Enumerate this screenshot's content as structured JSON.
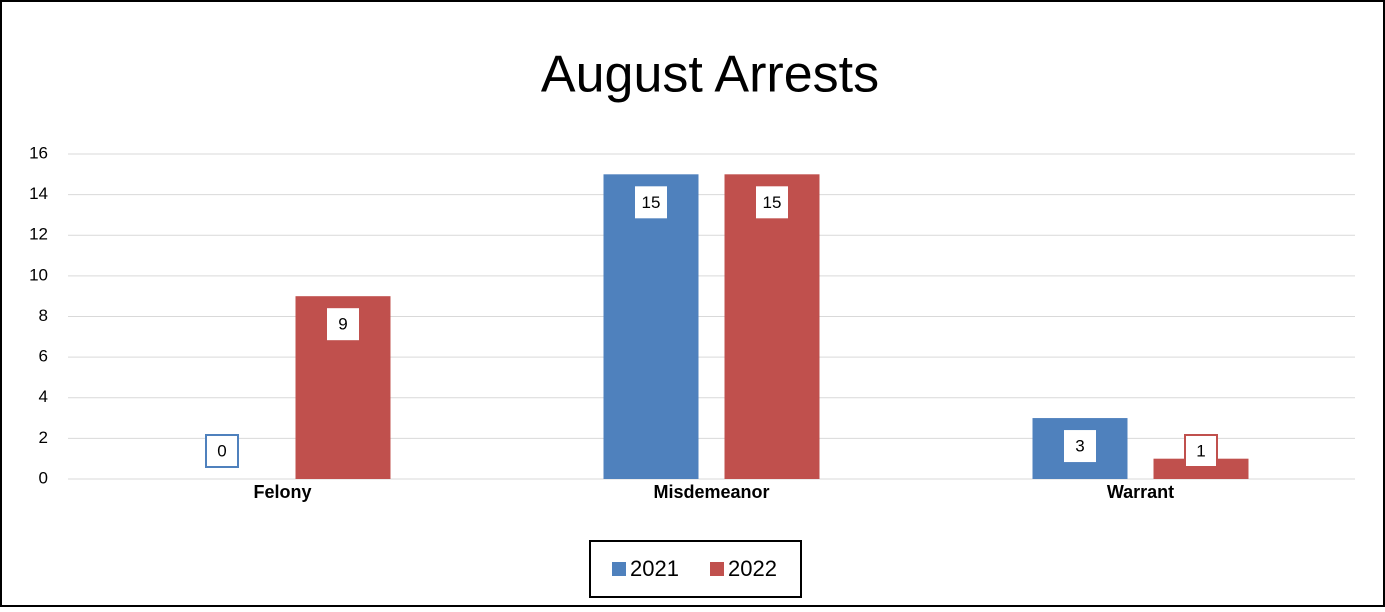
{
  "chart_data": {
    "type": "bar",
    "title": "August Arrests",
    "categories": [
      "Felony",
      "Misdemeanor",
      "Warrant"
    ],
    "series": [
      {
        "name": "2021",
        "color": "#4f81bd",
        "values": [
          0,
          15,
          3
        ]
      },
      {
        "name": "2022",
        "color": "#c0504d",
        "values": [
          9,
          15,
          1
        ]
      }
    ],
    "ylim": [
      0,
      16
    ],
    "yticks": [
      0,
      2,
      4,
      6,
      8,
      10,
      12,
      14,
      16
    ],
    "grid": true,
    "legend": "bottom"
  }
}
